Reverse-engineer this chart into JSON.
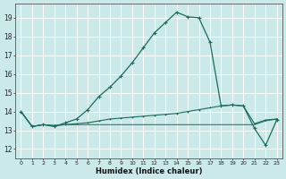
{
  "xlabel": "Humidex (Indice chaleur)",
  "bg_color": "#cce9e9",
  "grid_color": "#ffffff",
  "line_color": "#1a6b5a",
  "xlim": [
    -0.5,
    23.5
  ],
  "ylim": [
    11.5,
    19.75
  ],
  "yticks": [
    12,
    13,
    14,
    15,
    16,
    17,
    18,
    19
  ],
  "xticks": [
    0,
    1,
    2,
    3,
    4,
    5,
    6,
    7,
    8,
    9,
    10,
    11,
    12,
    13,
    14,
    15,
    16,
    17,
    18,
    19,
    20,
    21,
    22,
    23
  ],
  "line1_x": [
    0,
    1,
    2,
    3,
    4,
    5,
    6,
    7,
    8,
    9,
    10,
    11,
    12,
    13,
    14,
    15,
    16,
    17,
    18,
    19,
    20,
    21,
    22,
    23
  ],
  "line1_y": [
    14.0,
    13.2,
    13.3,
    13.2,
    13.4,
    13.6,
    14.1,
    14.8,
    15.3,
    15.9,
    16.6,
    17.4,
    18.2,
    18.75,
    19.3,
    19.05,
    19.0,
    17.7,
    14.3,
    14.35,
    14.3,
    13.1,
    12.2,
    13.55
  ],
  "line2_x": [
    0,
    1,
    2,
    3,
    4,
    5,
    6,
    7,
    8,
    9,
    10,
    11,
    12,
    13,
    14,
    15,
    16,
    17,
    18,
    19,
    20,
    21,
    22,
    23
  ],
  "line2_y": [
    14.0,
    13.2,
    13.3,
    13.25,
    13.3,
    13.35,
    13.4,
    13.5,
    13.6,
    13.65,
    13.7,
    13.75,
    13.8,
    13.85,
    13.9,
    14.0,
    14.1,
    14.2,
    14.3,
    14.35,
    14.3,
    13.35,
    13.55,
    13.6
  ],
  "line3_x": [
    0,
    1,
    2,
    3,
    4,
    5,
    6,
    7,
    8,
    9,
    10,
    11,
    12,
    13,
    14,
    15,
    16,
    17,
    18,
    19,
    20,
    21,
    22,
    23
  ],
  "line3_y": [
    14.0,
    13.2,
    13.3,
    13.25,
    13.3,
    13.3,
    13.3,
    13.3,
    13.3,
    13.3,
    13.3,
    13.3,
    13.3,
    13.3,
    13.3,
    13.3,
    13.3,
    13.3,
    13.3,
    13.3,
    13.3,
    13.3,
    13.5,
    13.6
  ]
}
